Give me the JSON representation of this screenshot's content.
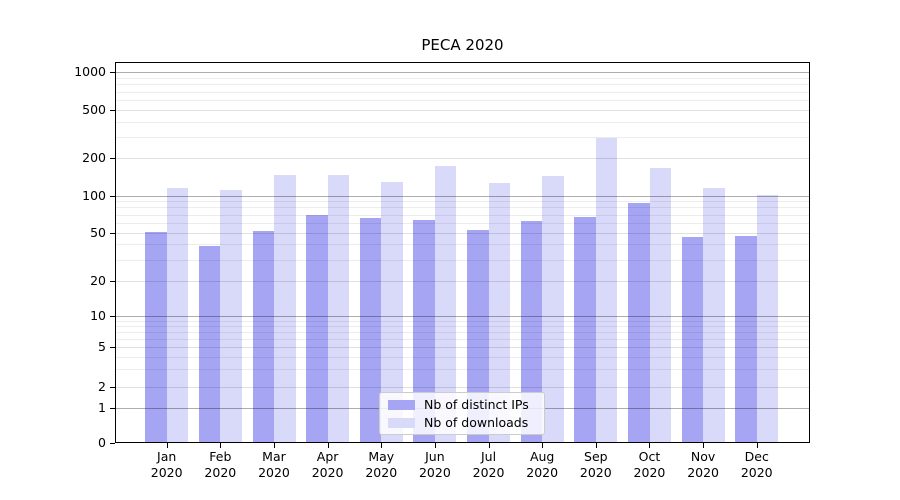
{
  "title": "PECA 2020",
  "chart_data": {
    "type": "bar",
    "title": "PECA 2020",
    "categories": [
      "Jan 2020",
      "Feb 2020",
      "Mar 2020",
      "Apr 2020",
      "May 2020",
      "Jun 2020",
      "Jul 2020",
      "Aug 2020",
      "Sep 2020",
      "Oct 2020",
      "Nov 2020",
      "Dec 2020"
    ],
    "x_tick_lines": [
      [
        "Jan",
        "2020"
      ],
      [
        "Feb",
        "2020"
      ],
      [
        "Mar",
        "2020"
      ],
      [
        "Apr",
        "2020"
      ],
      [
        "May",
        "2020"
      ],
      [
        "Jun",
        "2020"
      ],
      [
        "Jul",
        "2020"
      ],
      [
        "Aug",
        "2020"
      ],
      [
        "Sep",
        "2020"
      ],
      [
        "Oct",
        "2020"
      ],
      [
        "Nov",
        "2020"
      ],
      [
        "Dec",
        "2020"
      ]
    ],
    "series": [
      {
        "name": "Nb of distinct IPs",
        "color": "#a5a5f3",
        "values": [
          51,
          39,
          52,
          70,
          66,
          63,
          53,
          62,
          67,
          87,
          46,
          47
        ]
      },
      {
        "name": "Nb of downloads",
        "color": "#d9d9f9",
        "values": [
          115,
          110,
          147,
          146,
          129,
          175,
          127,
          145,
          292,
          168,
          116,
          101
        ]
      }
    ],
    "xlabel": "",
    "ylabel": "",
    "y_axis": {
      "scale": "symlog",
      "tick_labels": [
        "0",
        "1",
        "2",
        "5",
        "10",
        "20",
        "50",
        "100",
        "200",
        "500",
        "1000"
      ],
      "tick_values": [
        0,
        1,
        2,
        5,
        10,
        20,
        50,
        100,
        200,
        500,
        1000
      ],
      "ylim": [
        0,
        1270
      ]
    },
    "grid": true,
    "legend": {
      "position": "lower center",
      "labels": [
        "Nb of distinct IPs",
        "Nb of downloads"
      ]
    }
  },
  "colors": {
    "bar_distinct_ips": "#a5a5f3",
    "bar_downloads": "#d9d9f9",
    "axis": "#000000",
    "legend_border": "#cccccc"
  }
}
